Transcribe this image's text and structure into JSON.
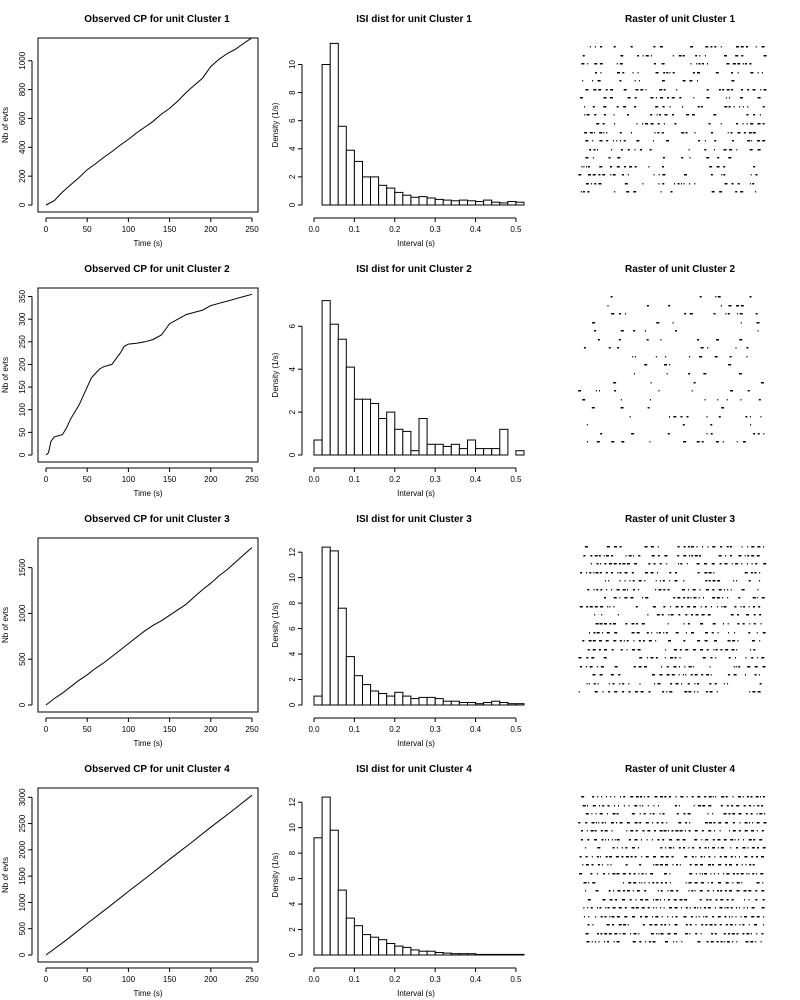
{
  "chart_data": [
    {
      "type": "line",
      "title": "Observed CP for unit Cluster 1",
      "xlabel": "Time (s)",
      "ylabel": "Nb of evts",
      "xlim": [
        0,
        250
      ],
      "ylim": [
        0,
        1130
      ],
      "xticks": [
        "0",
        "50",
        "100",
        "150",
        "200",
        "250"
      ],
      "yticks": [
        "0",
        "200",
        "400",
        "600",
        "800",
        "1000"
      ],
      "x": [
        0,
        10,
        20,
        30,
        40,
        50,
        60,
        70,
        80,
        90,
        100,
        110,
        120,
        130,
        140,
        150,
        160,
        170,
        180,
        190,
        200,
        210,
        220,
        230,
        240,
        250
      ],
      "y": [
        0,
        30,
        90,
        140,
        190,
        245,
        285,
        330,
        370,
        415,
        455,
        500,
        540,
        580,
        630,
        670,
        720,
        780,
        830,
        880,
        960,
        1010,
        1050,
        1080,
        1120,
        1160
      ]
    },
    {
      "type": "bar",
      "title": "ISI dist for unit Cluster 1",
      "xlabel": "Interval (s)",
      "ylabel": "Density (1/s)",
      "xlim": [
        0,
        0.52
      ],
      "ylim": [
        0,
        11.6
      ],
      "bin_width": 0.02,
      "xticks": [
        "0.0",
        "0.1",
        "0.2",
        "0.3",
        "0.4",
        "0.5"
      ],
      "yticks": [
        "0",
        "2",
        "4",
        "6",
        "8",
        "10"
      ],
      "values": [
        0,
        10,
        11.5,
        5.6,
        3.9,
        3.1,
        2,
        2,
        1.4,
        1.2,
        0.9,
        0.7,
        0.55,
        0.6,
        0.5,
        0.4,
        0.35,
        0.3,
        0.35,
        0.3,
        0.25,
        0.35,
        0.2,
        0.15,
        0.25,
        0.2
      ]
    },
    {
      "type": "raster",
      "title": "Raster of unit Cluster 1",
      "rows": 18,
      "density": 0.55,
      "seed": 11
    },
    {
      "type": "line",
      "title": "Observed CP for unit Cluster 2",
      "xlabel": "Time (s)",
      "ylabel": "Nb of evts",
      "xlim": [
        0,
        250
      ],
      "ylim": [
        0,
        360
      ],
      "xticks": [
        "0",
        "50",
        "100",
        "150",
        "200",
        "250"
      ],
      "yticks": [
        "0",
        "50",
        "100",
        "150",
        "200",
        "250",
        "300",
        "350"
      ],
      "x": [
        0,
        3,
        6,
        10,
        20,
        25,
        30,
        35,
        40,
        45,
        50,
        55,
        60,
        65,
        70,
        80,
        90,
        95,
        100,
        110,
        120,
        130,
        140,
        150,
        160,
        170,
        180,
        190,
        200,
        210,
        220,
        230,
        240,
        250
      ],
      "y": [
        0,
        5,
        30,
        40,
        45,
        60,
        80,
        95,
        110,
        130,
        150,
        170,
        180,
        190,
        195,
        200,
        225,
        240,
        245,
        247,
        250,
        255,
        265,
        290,
        300,
        310,
        315,
        320,
        330,
        335,
        340,
        345,
        350,
        355
      ]
    },
    {
      "type": "bar",
      "title": "ISI dist for unit Cluster 2",
      "xlabel": "Interval (s)",
      "ylabel": "Density (1/s)",
      "xlim": [
        0,
        0.52
      ],
      "ylim": [
        0,
        7.6
      ],
      "bin_width": 0.02,
      "xticks": [
        "0.0",
        "0.1",
        "0.2",
        "0.3",
        "0.4",
        "0.5"
      ],
      "yticks": [
        "0",
        "2",
        "4",
        "6"
      ],
      "values": [
        0.7,
        7.2,
        6.1,
        5.4,
        4.1,
        2.6,
        2.6,
        2.4,
        1.7,
        2,
        1.2,
        1.1,
        0.2,
        1.7,
        0.5,
        0.5,
        0.4,
        0.5,
        0.3,
        0.7,
        0.3,
        0.3,
        0.3,
        1.2,
        0,
        0.2,
        0.35
      ]
    },
    {
      "type": "raster",
      "title": "Raster of unit Cluster 2",
      "rows": 18,
      "density": 0.22,
      "seed": 23
    },
    {
      "type": "line",
      "title": "Observed CP for unit Cluster 3",
      "xlabel": "Time (s)",
      "ylabel": "Nb of evts",
      "xlim": [
        0,
        250
      ],
      "ylim": [
        0,
        1780
      ],
      "xticks": [
        "0",
        "50",
        "100",
        "150",
        "200",
        "250"
      ],
      "yticks": [
        "0",
        "500",
        "1000",
        "1500"
      ],
      "x": [
        0,
        10,
        20,
        30,
        40,
        50,
        60,
        70,
        80,
        90,
        100,
        110,
        120,
        130,
        140,
        150,
        160,
        170,
        180,
        190,
        200,
        210,
        220,
        230,
        240,
        250
      ],
      "y": [
        0,
        70,
        130,
        200,
        270,
        330,
        400,
        460,
        530,
        600,
        670,
        740,
        810,
        870,
        920,
        980,
        1040,
        1100,
        1180,
        1260,
        1330,
        1410,
        1480,
        1560,
        1640,
        1720
      ]
    },
    {
      "type": "bar",
      "title": "ISI dist for unit Cluster 3",
      "xlabel": "Interval (s)",
      "ylabel": "Density (1/s)",
      "xlim": [
        0,
        0.52
      ],
      "ylim": [
        0,
        12.8
      ],
      "bin_width": 0.02,
      "xticks": [
        "0.0",
        "0.1",
        "0.2",
        "0.3",
        "0.4",
        "0.5"
      ],
      "yticks": [
        "0",
        "2",
        "4",
        "6",
        "8",
        "10",
        "12"
      ],
      "values": [
        0.7,
        12.4,
        12.1,
        7.6,
        3.8,
        2.3,
        1.6,
        1.1,
        0.9,
        0.7,
        1,
        0.7,
        0.5,
        0.6,
        0.6,
        0.5,
        0.3,
        0.3,
        0.2,
        0.2,
        0.1,
        0.2,
        0.3,
        0.2,
        0.1,
        0.1
      ]
    },
    {
      "type": "raster",
      "title": "Raster of unit Cluster 3",
      "rows": 18,
      "density": 0.75,
      "seed": 37
    },
    {
      "type": "line",
      "title": "Observed CP for unit Cluster 4",
      "xlabel": "Time (s)",
      "ylabel": "Nb of evts",
      "xlim": [
        0,
        250
      ],
      "ylim": [
        0,
        3100
      ],
      "xticks": [
        "0",
        "50",
        "100",
        "150",
        "200",
        "250"
      ],
      "yticks": [
        "0",
        "500",
        "1000",
        "1500",
        "2000",
        "2500",
        "3000"
      ],
      "x": [
        0,
        25,
        50,
        75,
        100,
        125,
        150,
        175,
        200,
        225,
        250
      ],
      "y": [
        0,
        290,
        600,
        900,
        1210,
        1510,
        1820,
        2120,
        2430,
        2730,
        3040
      ]
    },
    {
      "type": "bar",
      "title": "ISI dist for unit Cluster 4",
      "xlabel": "Interval (s)",
      "ylabel": "Density (1/s)",
      "xlim": [
        0,
        0.52
      ],
      "ylim": [
        0,
        12.8
      ],
      "bin_width": 0.02,
      "xticks": [
        "0.0",
        "0.1",
        "0.2",
        "0.3",
        "0.4",
        "0.5"
      ],
      "yticks": [
        "0",
        "2",
        "4",
        "6",
        "8",
        "10",
        "12"
      ],
      "values": [
        9.2,
        12.4,
        9.8,
        5.1,
        2.9,
        2.3,
        1.6,
        1.4,
        1.2,
        0.9,
        0.7,
        0.6,
        0.4,
        0.3,
        0.3,
        0.2,
        0.15,
        0.1,
        0.1,
        0.1,
        0.05,
        0.05,
        0.05,
        0.05,
        0.05,
        0.05
      ]
    },
    {
      "type": "raster",
      "title": "Raster of unit Cluster 4",
      "rows": 18,
      "density": 0.9,
      "seed": 53
    }
  ]
}
